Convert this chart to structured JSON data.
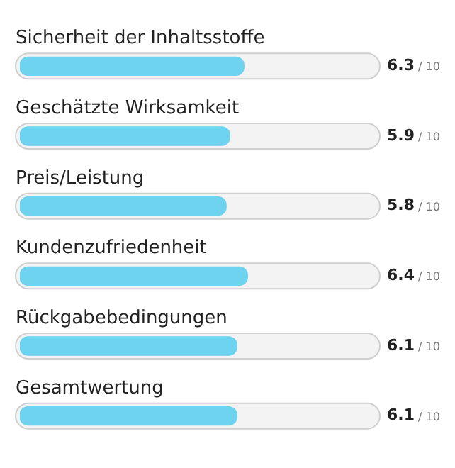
{
  "chart_data": {
    "type": "bar",
    "orientation": "horizontal",
    "categories": [
      "Sicherheit der Inhaltsstoffe",
      "Geschätzte Wirksamkeit",
      "Preis/Leistung",
      "Kundenzufriedenheit",
      "Rückgabebedingungen",
      "Gesamtwertung"
    ],
    "series": [
      {
        "color": "#6dd3ee",
        "values": [
          6.3,
          5.9,
          5.8,
          6.4,
          6.1,
          6.1
        ]
      }
    ],
    "data_labels": true,
    "annotations": [
      "/ 10"
    ],
    "xlim": [
      0,
      10
    ],
    "tick_labels": false,
    "legend": false
  }
}
